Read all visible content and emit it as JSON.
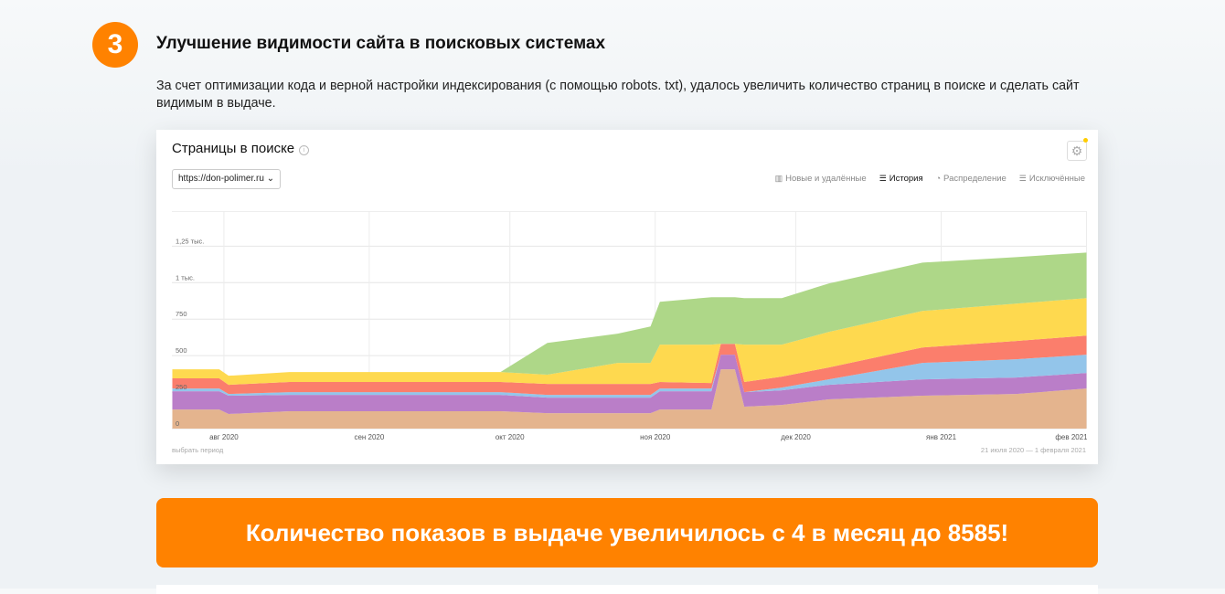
{
  "section": {
    "number": "3",
    "title": "Улучшение видимости сайта в поисковых системах",
    "description": "За счет оптимизации кода и верной настройки индексирования (с помощью robots. txt), удалось увеличить количество страниц в поиске и сделать сайт видимым в выдаче."
  },
  "card": {
    "title": "Страницы в поиске",
    "site_select": "https://don-polimer.ru",
    "tabs": [
      {
        "label": "Новые и удалённые",
        "icon": "bar-chart-icon"
      },
      {
        "label": "История",
        "icon": "history-icon",
        "active": true
      },
      {
        "label": "Распределение",
        "icon": "pie-icon"
      },
      {
        "label": "Исключённые",
        "icon": "excluded-icon"
      }
    ],
    "pick_period": "выбрать период",
    "period": "21 июля 2020 — 1 февраля 2021"
  },
  "chart_data": {
    "type": "area",
    "stacked": true,
    "x_unit": "days since 21 Jul 2020",
    "x": [
      0,
      10,
      12,
      25,
      70,
      80,
      95,
      102,
      104,
      115,
      117,
      120,
      122,
      130,
      140,
      160,
      180,
      195
    ],
    "xlim": [
      0,
      195
    ],
    "x_ticks": [
      {
        "day": 11,
        "label": "авг 2020"
      },
      {
        "day": 42,
        "label": "сен 2020"
      },
      {
        "day": 72,
        "label": "окт 2020"
      },
      {
        "day": 103,
        "label": "ноя 2020"
      },
      {
        "day": 133,
        "label": "дек 2020"
      },
      {
        "day": 164,
        "label": "янв 2021"
      },
      {
        "day": 195,
        "label": "фев 2021"
      }
    ],
    "y_ticks": [
      {
        "value": 0,
        "label": "0"
      },
      {
        "value": 250,
        "label": "250"
      },
      {
        "value": 500,
        "label": "500"
      },
      {
        "value": 750,
        "label": "750"
      },
      {
        "value": 1000,
        "label": "1 тыс."
      },
      {
        "value": 1250,
        "label": "1,25 тыс."
      }
    ],
    "ylim": [
      0,
      1490
    ],
    "grid": true,
    "series": [
      {
        "name": "series-1",
        "color": "#e4b48e",
        "values": [
          131,
          131,
          100,
          119,
          119,
          106,
          106,
          106,
          131,
          131,
          406,
          406,
          150,
          162,
          200,
          225,
          237,
          275
        ]
      },
      {
        "name": "series-2",
        "color": "#ba7ec8",
        "values": [
          125,
          125,
          125,
          112,
          112,
          106,
          106,
          106,
          125,
          125,
          100,
          100,
          100,
          100,
          100,
          112,
          113,
          106
        ]
      },
      {
        "name": "series-3",
        "color": "#93c5ea",
        "values": [
          19,
          19,
          12,
          19,
          19,
          19,
          19,
          19,
          19,
          19,
          0,
          0,
          0,
          19,
          37,
          113,
          125,
          125
        ]
      },
      {
        "name": "series-4",
        "color": "#fb7e6c",
        "values": [
          69,
          69,
          63,
          69,
          69,
          75,
          75,
          75,
          44,
          37,
          75,
          75,
          69,
          75,
          82,
          106,
          125,
          131
        ]
      },
      {
        "name": "series-5",
        "color": "#fed94f",
        "values": [
          62,
          62,
          62,
          68,
          68,
          63,
          144,
          144,
          256,
          263,
          0,
          0,
          256,
          219,
          243,
          250,
          256,
          257
        ]
      },
      {
        "name": "series-6",
        "color": "#aed788",
        "values": [
          0,
          0,
          0,
          0,
          0,
          218,
          200,
          250,
          294,
          325,
          319,
          319,
          319,
          319,
          332,
          331,
          319,
          312
        ]
      }
    ]
  },
  "banner": {
    "text": "Количество показов в выдаче увеличилось с 4 в месяц до 8585!"
  }
}
